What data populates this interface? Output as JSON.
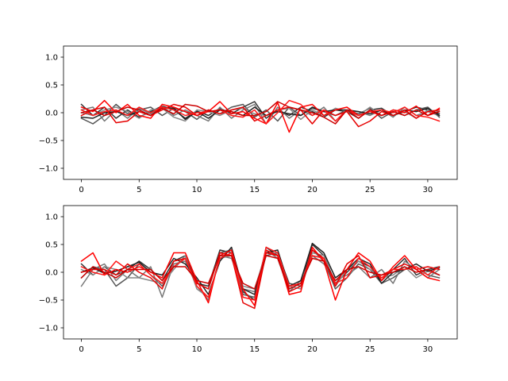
{
  "chart_data": [
    {
      "type": "line",
      "title": "",
      "xlabel": "",
      "ylabel": "",
      "xlim": [
        -1.55,
        32.55
      ],
      "ylim": [
        -1.2,
        1.2
      ],
      "xticks": [
        0,
        5,
        10,
        15,
        20,
        25,
        30
      ],
      "xtick_labels": [
        "0",
        "5",
        "10",
        "15",
        "20",
        "25",
        "30"
      ],
      "yticks": [
        -1.0,
        -0.5,
        0.0,
        0.5,
        1.0
      ],
      "ytick_labels": [
        "−1.0",
        "−0.5",
        "0.0",
        "0.5",
        "1.0"
      ],
      "grid": false,
      "x": [
        0,
        1,
        2,
        3,
        4,
        5,
        6,
        7,
        8,
        9,
        10,
        11,
        12,
        13,
        14,
        15,
        16,
        17,
        18,
        19,
        20,
        21,
        22,
        23,
        24,
        25,
        26,
        27,
        28,
        29,
        30,
        31
      ],
      "series": [
        {
          "color": "#333333",
          "values": [
            0.15,
            -0.05,
            0.1,
            -0.1,
            0.05,
            -0.08,
            0.02,
            0.12,
            0.05,
            -0.1,
            0.03,
            -0.05,
            0.08,
            -0.02,
            0.1,
            0.2,
            -0.1,
            0.05,
            -0.05,
            0.1,
            0.02,
            -0.08,
            0.05,
            0.02,
            -0.1,
            0.05,
            0.08,
            -0.05,
            0.02,
            0.1,
            0.05,
            -0.02
          ]
        },
        {
          "color": "#555555",
          "values": [
            -0.1,
            -0.2,
            -0.05,
            0.15,
            -0.02,
            0.05,
            0.1,
            -0.05,
            0.08,
            0.02,
            -0.12,
            0.05,
            -0.02,
            0.1,
            0.15,
            -0.08,
            0.05,
            -0.15,
            0.1,
            -0.05,
            0.08,
            0.02,
            -0.05,
            0.05,
            -0.02,
            0.08,
            -0.1,
            0.02,
            -0.05,
            0.05,
            0.1,
            -0.08
          ]
        },
        {
          "color": "#777777",
          "values": [
            0.05,
            0.1,
            -0.15,
            0.05,
            -0.1,
            0.08,
            -0.02,
            0.12,
            -0.05,
            0.05,
            -0.05,
            -0.15,
            0.1,
            -0.1,
            0.05,
            0.15,
            -0.2,
            0.1,
            -0.1,
            0.05,
            -0.05,
            0.1,
            -0.15,
            0.05,
            0.02,
            -0.05,
            0.05,
            -0.08,
            0.1,
            -0.05,
            0.02,
            -0.05
          ]
        },
        {
          "color": "#888888",
          "values": [
            0.0,
            -0.05,
            0.05,
            0.1,
            0.02,
            -0.1,
            0.05,
            0.08,
            -0.08,
            -0.15,
            0.05,
            0.02,
            -0.05,
            0.05,
            0.08,
            -0.02,
            -0.05,
            0.05,
            0.08,
            -0.12,
            0.05,
            -0.05,
            0.08,
            0.02,
            -0.05,
            0.1,
            -0.05,
            0.05,
            0.02,
            -0.1,
            0.05,
            0.02
          ]
        },
        {
          "color": "#222222",
          "values": [
            -0.08,
            -0.1,
            0.0,
            0.02,
            -0.05,
            0.02,
            -0.05,
            0.1,
            0.08,
            -0.12,
            0.02,
            -0.1,
            0.05,
            0.02,
            -0.05,
            0.1,
            -0.05,
            0.02,
            -0.02,
            -0.05,
            0.1,
            0.02,
            0.05,
            0.05,
            0.02,
            -0.02,
            0.05,
            -0.05,
            0.05,
            0.02,
            0.08,
            -0.05
          ]
        },
        {
          "color": "#ff0000",
          "values": [
            0.1,
            0.02,
            0.22,
            0.0,
            0.15,
            -0.05,
            -0.1,
            0.15,
            0.1,
            0.02,
            -0.05,
            0.02,
            0.2,
            -0.02,
            0.02,
            -0.1,
            -0.2,
            0.18,
            -0.35,
            0.1,
            0.15,
            -0.05,
            0.05,
            0.1,
            -0.05,
            0.02,
            -0.05,
            0.05,
            0.0,
            0.12,
            -0.05,
            0.08
          ]
        },
        {
          "color": "#e60000",
          "values": [
            -0.05,
            0.05,
            0.1,
            -0.18,
            -0.15,
            0.02,
            -0.05,
            0.05,
            0.15,
            0.1,
            -0.05,
            0.05,
            -0.02,
            0.05,
            0.1,
            -0.15,
            -0.05,
            0.05,
            0.1,
            0.05,
            -0.2,
            0.05,
            -0.05,
            0.02,
            -0.25,
            -0.15,
            0.02,
            -0.05,
            0.05,
            -0.1,
            0.02,
            0.05
          ]
        },
        {
          "color": "#ff1a1a",
          "values": [
            0.05,
            -0.05,
            0.02,
            0.05,
            -0.05,
            0.1,
            0.0,
            0.1,
            0.05,
            -0.05,
            0.0,
            0.02,
            0.05,
            -0.05,
            -0.08,
            0.05,
            -0.2,
            0.0,
            0.22,
            0.15,
            -0.05,
            0.05,
            -0.15,
            0.05,
            -0.05,
            0.02,
            0.05,
            0.0,
            0.1,
            -0.05,
            -0.08,
            -0.15
          ]
        },
        {
          "color": "#cc0000",
          "values": [
            0.0,
            0.05,
            -0.05,
            0.02,
            0.1,
            0.05,
            -0.05,
            0.08,
            -0.02,
            0.15,
            0.12,
            0.02,
            0.05,
            0.02,
            -0.05,
            -0.05,
            0.02,
            0.2,
            0.1,
            0.05,
            0.0,
            -0.08,
            -0.2,
            0.05,
            -0.1,
            0.05,
            -0.05,
            0.02,
            -0.05,
            0.05,
            -0.05,
            0.02
          ]
        }
      ]
    },
    {
      "type": "line",
      "title": "",
      "xlabel": "",
      "ylabel": "",
      "xlim": [
        -1.55,
        32.55
      ],
      "ylim": [
        -1.2,
        1.2
      ],
      "xticks": [
        0,
        5,
        10,
        15,
        20,
        25,
        30
      ],
      "xtick_labels": [
        "0",
        "5",
        "10",
        "15",
        "20",
        "25",
        "30"
      ],
      "yticks": [
        -1.0,
        -0.5,
        0.0,
        0.5,
        1.0
      ],
      "ytick_labels": [
        "−1.0",
        "−0.5",
        "0.0",
        "0.5",
        "1.0"
      ],
      "grid": false,
      "x": [
        0,
        1,
        2,
        3,
        4,
        5,
        6,
        7,
        8,
        9,
        10,
        11,
        12,
        13,
        14,
        15,
        16,
        17,
        18,
        19,
        20,
        21,
        22,
        23,
        24,
        25,
        26,
        27,
        28,
        29,
        30,
        31
      ],
      "series": [
        {
          "color": "#333333",
          "values": [
            0.15,
            -0.05,
            0.1,
            -0.05,
            0.05,
            0.2,
            0.05,
            -0.15,
            0.2,
            0.3,
            -0.2,
            -0.25,
            0.4,
            0.35,
            -0.35,
            -0.5,
            0.45,
            0.3,
            -0.3,
            -0.2,
            0.5,
            0.3,
            -0.2,
            0.0,
            0.2,
            0.1,
            -0.15,
            0.05,
            0.25,
            -0.05,
            0.05,
            0.1
          ]
        },
        {
          "color": "#555555",
          "values": [
            -0.1,
            0.1,
            0.05,
            -0.25,
            -0.1,
            0.15,
            -0.05,
            -0.25,
            0.1,
            0.25,
            -0.2,
            -0.3,
            0.35,
            0.4,
            -0.4,
            -0.45,
            0.3,
            0.35,
            -0.2,
            -0.25,
            0.4,
            0.2,
            -0.3,
            -0.1,
            0.15,
            0.05,
            -0.2,
            -0.1,
            0.05,
            0.1,
            -0.05,
            -0.1
          ]
        },
        {
          "color": "#777777",
          "values": [
            -0.25,
            0.05,
            0.15,
            -0.15,
            0.05,
            -0.1,
            0.1,
            -0.45,
            0.15,
            0.2,
            -0.25,
            -0.5,
            0.3,
            0.25,
            -0.3,
            -0.35,
            0.4,
            0.25,
            -0.35,
            -0.15,
            0.3,
            0.15,
            -0.15,
            -0.05,
            0.1,
            -0.1,
            0.05,
            -0.2,
            0.2,
            0.05,
            -0.1,
            0.05
          ]
        },
        {
          "color": "#888888",
          "values": [
            0.05,
            -0.05,
            0.1,
            0.05,
            -0.1,
            -0.1,
            -0.15,
            -0.2,
            0.05,
            0.3,
            -0.3,
            -0.45,
            0.25,
            0.3,
            -0.25,
            -0.3,
            0.35,
            0.35,
            -0.25,
            -0.3,
            0.35,
            0.3,
            -0.25,
            0.05,
            0.2,
            0.05,
            -0.1,
            -0.05,
            0.1,
            -0.1,
            0.02,
            -0.05
          ]
        },
        {
          "color": "#222222",
          "values": [
            0.0,
            0.08,
            -0.02,
            0.02,
            0.1,
            0.18,
            0.0,
            -0.05,
            0.25,
            0.15,
            -0.1,
            -0.4,
            0.2,
            0.45,
            -0.3,
            -0.4,
            0.35,
            0.4,
            -0.25,
            -0.15,
            0.52,
            0.35,
            -0.1,
            0.05,
            0.25,
            0.15,
            -0.2,
            0.0,
            0.05,
            0.15,
            0.02,
            0.08
          ]
        },
        {
          "color": "#ff0000",
          "values": [
            0.2,
            0.35,
            -0.05,
            0.05,
            0.0,
            0.1,
            0.0,
            -0.1,
            0.35,
            0.35,
            -0.15,
            -0.55,
            0.3,
            0.4,
            -0.3,
            -0.6,
            0.4,
            0.3,
            -0.4,
            -0.35,
            0.45,
            0.2,
            -0.5,
            0.05,
            0.35,
            0.2,
            -0.15,
            0.1,
            0.3,
            0.05,
            -0.1,
            -0.15
          ]
        },
        {
          "color": "#e60000",
          "values": [
            0.0,
            0.05,
            0.05,
            -0.05,
            0.15,
            0.0,
            -0.1,
            -0.3,
            0.2,
            0.25,
            -0.2,
            -0.3,
            0.35,
            0.3,
            -0.55,
            -0.65,
            0.35,
            0.3,
            -0.35,
            -0.25,
            0.4,
            0.25,
            -0.25,
            0.15,
            0.3,
            -0.1,
            -0.05,
            0.05,
            0.15,
            0.05,
            0.1,
            0.05
          ]
        },
        {
          "color": "#ff1a1a",
          "values": [
            0.1,
            0.0,
            -0.05,
            0.2,
            0.05,
            0.15,
            -0.05,
            -0.2,
            0.1,
            0.25,
            -0.25,
            -0.45,
            0.25,
            0.35,
            -0.45,
            -0.5,
            0.45,
            0.35,
            -0.25,
            -0.2,
            0.3,
            0.25,
            -0.2,
            -0.1,
            0.25,
            0.1,
            -0.1,
            0.05,
            0.05,
            0.1,
            -0.05,
            0.1
          ]
        },
        {
          "color": "#cc0000",
          "values": [
            -0.1,
            0.1,
            0.0,
            -0.1,
            0.05,
            0.05,
            0.05,
            -0.15,
            0.1,
            0.1,
            -0.15,
            -0.2,
            0.3,
            0.3,
            -0.2,
            -0.3,
            0.3,
            0.25,
            -0.3,
            -0.2,
            0.25,
            0.2,
            -0.15,
            0.05,
            0.1,
            0.0,
            -0.05,
            0.0,
            0.1,
            0.0,
            0.05,
            -0.05
          ]
        }
      ]
    }
  ]
}
